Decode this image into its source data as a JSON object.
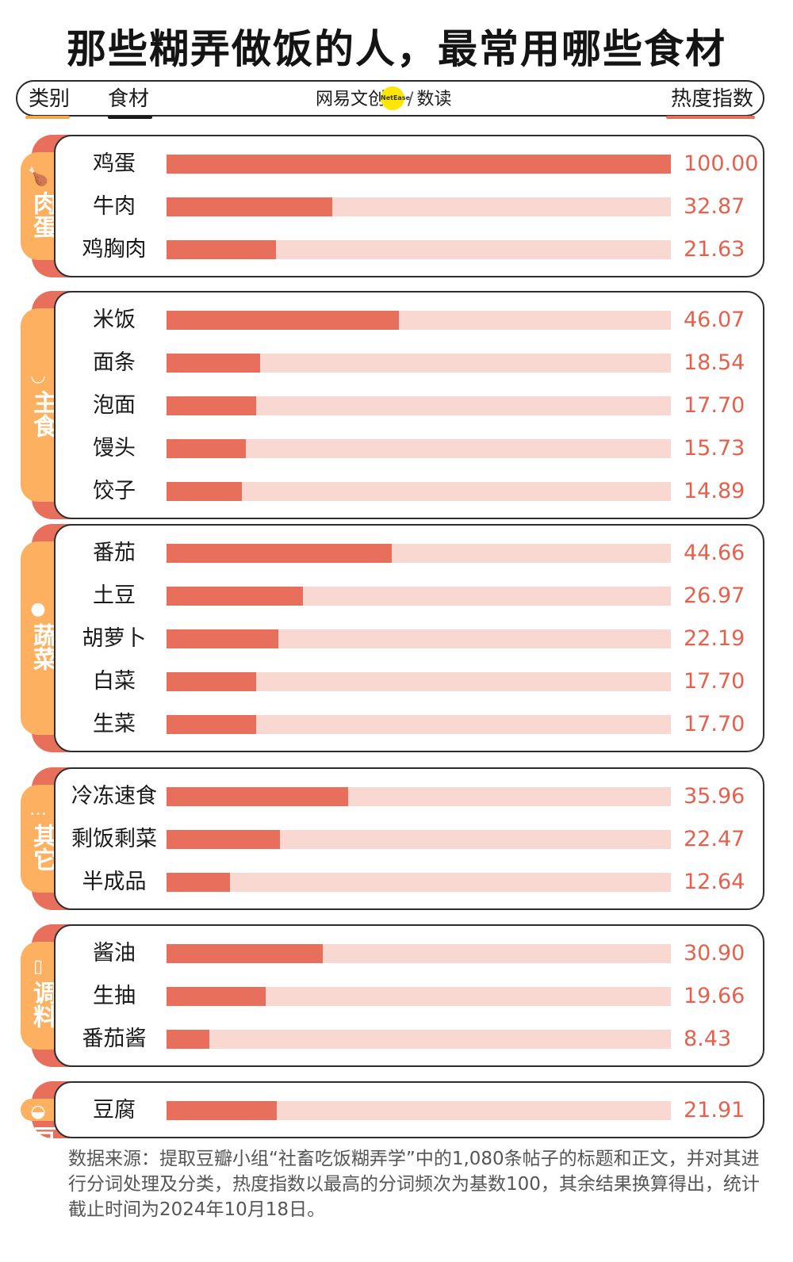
{
  "title": "那些糊弄做饭的人，最常用哪些食材",
  "header": {
    "category": "类别",
    "ingredient": "食材",
    "logo_text": "网易文创",
    "logo_badge": "NetEase",
    "logo_sub": "数读",
    "heat": "热度指数"
  },
  "chart_data": {
    "type": "bar",
    "xlim": [
      0,
      100
    ],
    "groups": [
      {
        "name": "肉蛋",
        "icon": "chicken-leg-icon",
        "items": [
          {
            "label": "鸡蛋",
            "value": 100.0,
            "display": "100.00"
          },
          {
            "label": "牛肉",
            "value": 32.87,
            "display": "32.87"
          },
          {
            "label": "鸡胸肉",
            "value": 21.63,
            "display": "21.63"
          }
        ]
      },
      {
        "name": "主食",
        "icon": "rice-bowl-icon",
        "items": [
          {
            "label": "米饭",
            "value": 46.07,
            "display": "46.07"
          },
          {
            "label": "面条",
            "value": 18.54,
            "display": "18.54"
          },
          {
            "label": "泡面",
            "value": 17.7,
            "display": "17.70"
          },
          {
            "label": "馒头",
            "value": 15.73,
            "display": "15.73"
          },
          {
            "label": "饺子",
            "value": 14.89,
            "display": "14.89"
          }
        ]
      },
      {
        "name": "蔬菜",
        "icon": "tomato-icon",
        "items": [
          {
            "label": "番茄",
            "value": 44.66,
            "display": "44.66"
          },
          {
            "label": "土豆",
            "value": 26.97,
            "display": "26.97"
          },
          {
            "label": "胡萝卜",
            "value": 22.19,
            "display": "22.19"
          },
          {
            "label": "白菜",
            "value": 17.7,
            "display": "17.70"
          },
          {
            "label": "生菜",
            "value": 17.7,
            "display": "17.70"
          }
        ]
      },
      {
        "name": "其它",
        "icon": "ellipsis-icon",
        "items": [
          {
            "label": "冷冻速食",
            "value": 35.96,
            "display": "35.96"
          },
          {
            "label": "剩饭剩菜",
            "value": 22.47,
            "display": "22.47"
          },
          {
            "label": "半成品",
            "value": 12.64,
            "display": "12.64"
          }
        ]
      },
      {
        "name": "调料",
        "icon": "sauce-bottle-icon",
        "items": [
          {
            "label": "酱油",
            "value": 30.9,
            "display": "30.90"
          },
          {
            "label": "生抽",
            "value": 19.66,
            "display": "19.66"
          },
          {
            "label": "番茄酱",
            "value": 8.43,
            "display": "8.43"
          }
        ]
      },
      {
        "name": "豆制品",
        "icon": "bean-icon",
        "items": [
          {
            "label": "豆腐",
            "value": 21.91,
            "display": "21.91"
          }
        ]
      }
    ]
  },
  "note": "数据来源：提取豆瓣小组“社畜吃饭糊弄学”中的1,080条帖子的标题和正文，并对其进行分词处理及分类，热度指数以最高的分词频次为基数100，其余结果换算得出，统计截止时间为2024年10月18日。",
  "colors": {
    "bar": "#e96f5d",
    "track": "#f9d8d2",
    "tab": "#fdb05f",
    "tab_shadow": "#e96f5d",
    "value_text": "#e5604d"
  }
}
